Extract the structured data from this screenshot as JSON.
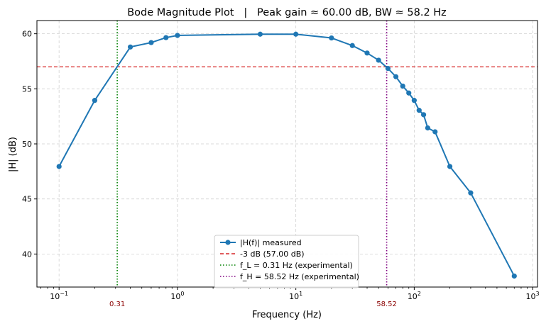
{
  "chart_data": {
    "type": "line",
    "title": "Bode Magnitude Plot   |   Peak gain ≈ 60.00 dB, BW ≈ 58.2 Hz",
    "xlabel": "Frequency (Hz)",
    "ylabel": "|H| (dB)",
    "x_scale": "log",
    "xlim": [
      0.065,
      1100
    ],
    "ylim": [
      37,
      61.2
    ],
    "x_ticks": [
      {
        "value": 0.1,
        "base": "10",
        "exp": "−1"
      },
      {
        "value": 1,
        "base": "10",
        "exp": "0"
      },
      {
        "value": 10,
        "base": "10",
        "exp": "1"
      },
      {
        "value": 100,
        "base": "10",
        "exp": "2"
      },
      {
        "value": 1000,
        "base": "10",
        "exp": "3"
      }
    ],
    "y_ticks": [
      40,
      45,
      50,
      55,
      60
    ],
    "grid": true,
    "legend_position": "lower center",
    "series": [
      {
        "name": "|H(f)| measured",
        "color": "#1f77b4",
        "x": [
          0.1,
          0.2,
          0.4,
          0.6,
          0.8,
          1,
          5,
          10,
          20,
          30,
          40,
          50,
          60,
          70,
          80,
          90,
          100,
          110,
          120,
          130,
          150,
          200,
          300,
          700
        ],
        "y": [
          47.95,
          53.95,
          58.8,
          59.2,
          59.65,
          59.85,
          59.96,
          59.96,
          59.62,
          58.93,
          58.25,
          57.6,
          56.85,
          56.1,
          55.25,
          54.62,
          53.95,
          53.05,
          52.65,
          51.45,
          51.1,
          47.95,
          45.55,
          38.0
        ]
      }
    ],
    "reference_lines": [
      {
        "kind": "horizontal",
        "value": 57.0,
        "label": "-3 dB (57.00 dB)",
        "color": "#d62728",
        "style": "dashed"
      },
      {
        "kind": "vertical",
        "value": 0.31,
        "label": "f_L = 0.31 Hz (experimental)",
        "tick_label": "0.31",
        "color": "#008000",
        "style": "dotted"
      },
      {
        "kind": "vertical",
        "value": 58.52,
        "label": "f_H = 58.52 Hz (experimental)",
        "tick_label": "58.52",
        "color": "#800080",
        "style": "dotted"
      }
    ]
  }
}
